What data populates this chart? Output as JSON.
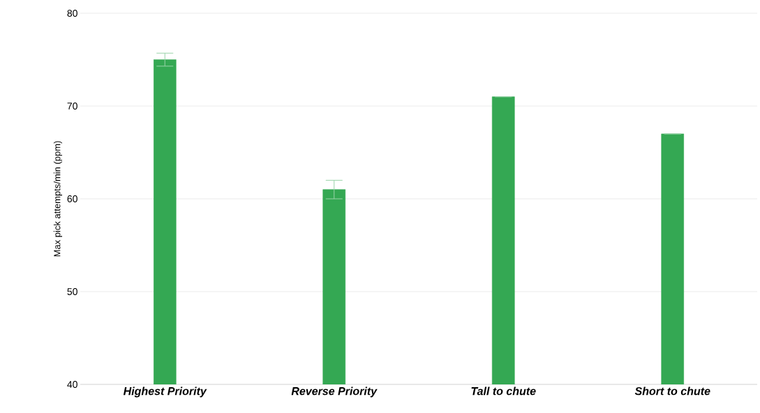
{
  "chart_data": {
    "type": "bar",
    "ylabel": "Max pick attempts/min (ppm)",
    "categories": [
      "Highest Priority",
      "Reverse Priority",
      "Tall to chute",
      "Short to chute"
    ],
    "series": [
      {
        "color": "#34a853",
        "values": [
          75,
          61,
          71,
          67
        ],
        "errors": [
          0.7,
          1,
          null,
          null
        ]
      }
    ],
    "ylim": [
      40,
      80
    ],
    "yticks": [
      40,
      50,
      60,
      70,
      80
    ],
    "grid": "y"
  }
}
